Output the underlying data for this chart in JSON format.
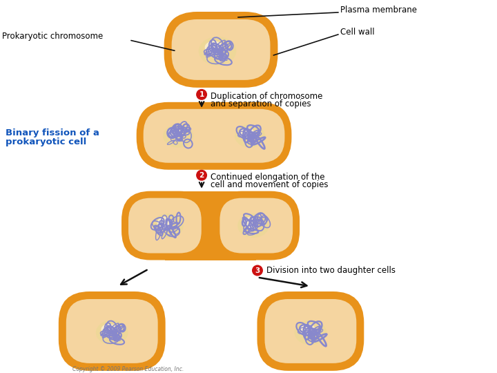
{
  "bg_color": "#ffffff",
  "cell_outer_color": "#E8921A",
  "cell_inner_color": "#F5D5A0",
  "cell_wall_color": "#F0C070",
  "chromosome_color": "#8888CC",
  "nucleoid_color": "#EED898",
  "label_prokaryotic": "Prokaryotic chromosome",
  "label_plasma": "Plasma membrane",
  "label_cell_wall": "Cell wall",
  "label_binary_line1": "Binary fission of a",
  "label_binary_line2": "prokaryotic cell",
  "label_binary_color": "#1155BB",
  "label1_line1": "Duplication of chromosome",
  "label1_line2": "and separation of copies",
  "label2_line1": "Continued elongation of the",
  "label2_line2": "cell and movement of copies",
  "label3": "Division into two daughter cells",
  "step_circle_color": "#CC1111",
  "step_text_color": "#ffffff",
  "copyright": "Copyright © 2009 Pearson Education, Inc.",
  "arrow_color": "#111111",
  "line_color": "#111111"
}
